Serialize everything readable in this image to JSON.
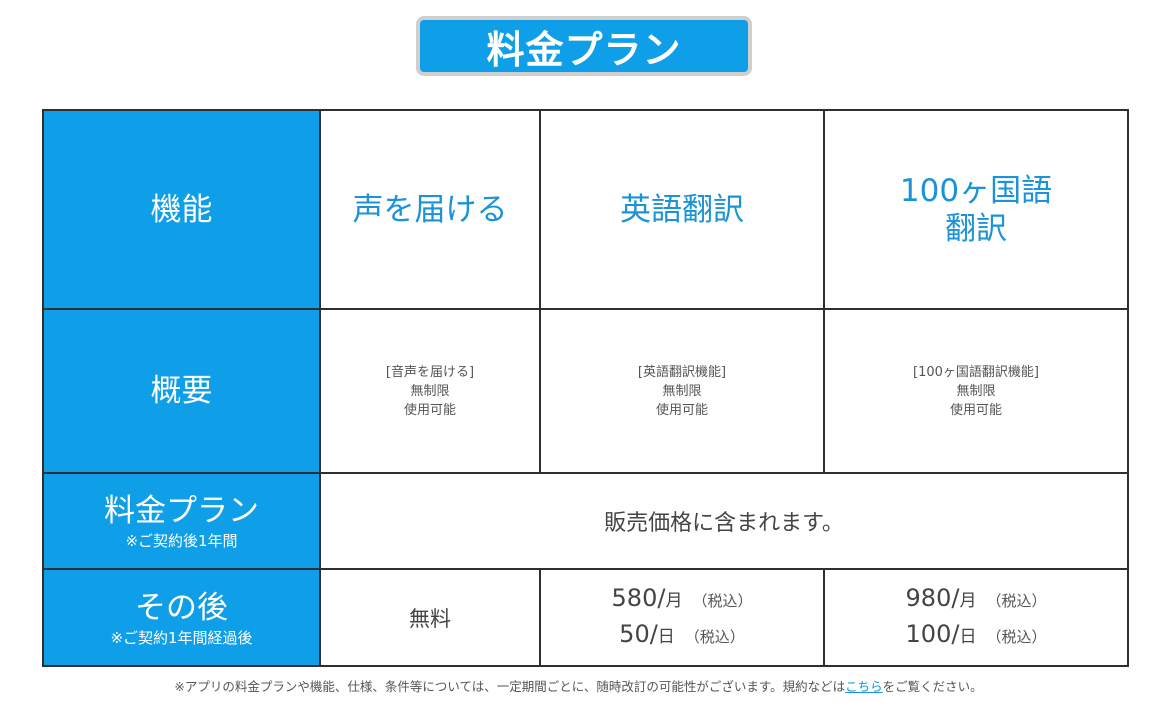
{
  "title": "料金プラン",
  "colors": {
    "accent": "#0f9ee8",
    "feature_text": "#1b93d8"
  },
  "rows": {
    "function": {
      "label": "機能"
    },
    "summary": {
      "label": "概要"
    },
    "plan": {
      "label": "料金プラン",
      "note": "※ご契約後1年間"
    },
    "after": {
      "label": "その後",
      "note": "※ご契約1年間経過後"
    }
  },
  "features": [
    {
      "name": "声を届ける",
      "summary": "[音声を届ける]\n無制限\n使用可能"
    },
    {
      "name": "英語翻訳",
      "summary": "[英語翻訳機能]\n無制限\n使用可能"
    },
    {
      "name": "100ヶ国語\n翻訳",
      "summary": "[100ヶ国語翻訳機能]\n無制限\n使用可能"
    }
  ],
  "plan_text": "販売価格に含まれます。",
  "after_prices": {
    "voice": "無料",
    "english": [
      {
        "amount": "580/",
        "unit": "月",
        "tax": "（税込）"
      },
      {
        "amount": "50/",
        "unit": "日",
        "tax": "（税込）"
      }
    ],
    "multi": [
      {
        "amount": "980/",
        "unit": "月",
        "tax": "（税込）"
      },
      {
        "amount": "100/",
        "unit": "日",
        "tax": "（税込）"
      }
    ]
  },
  "footnote": {
    "text": "※アプリの料金プランや機能、仕様、条件等については、一定期間ごとに、随時改訂の可能性がございます。規約などは",
    "link": "こちら",
    "suffix": "をご覧ください。"
  }
}
